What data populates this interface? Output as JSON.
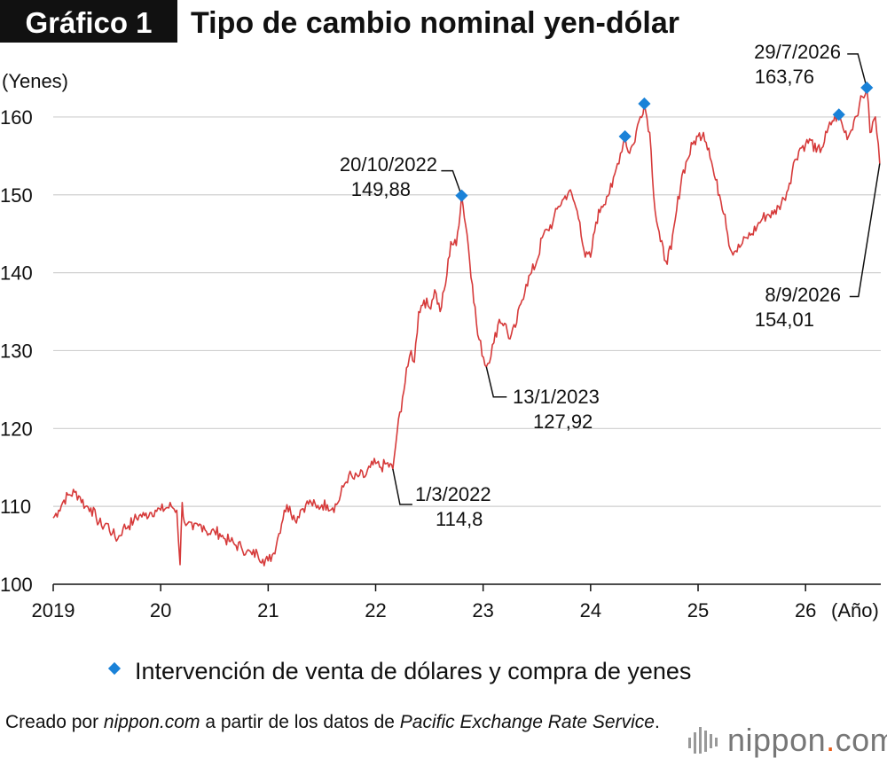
{
  "badge": "Gráfico 1",
  "title": "Tipo de cambio nominal yen-dólar",
  "chart_data": {
    "type": "line",
    "title": "Tipo de cambio nominal yen-dólar",
    "ylabel": "(Yenes)",
    "xlabel": "(Año)",
    "ylim": [
      100,
      165
    ],
    "yticks": [
      100,
      110,
      120,
      130,
      140,
      150,
      160
    ],
    "xlim": [
      2019.0,
      2026.7
    ],
    "xticks": [
      {
        "value": 2019,
        "label": "2019"
      },
      {
        "value": 2020,
        "label": "20"
      },
      {
        "value": 2021,
        "label": "21"
      },
      {
        "value": 2022,
        "label": "22"
      },
      {
        "value": 2023,
        "label": "23"
      },
      {
        "value": 2024,
        "label": "24"
      },
      {
        "value": 2025,
        "label": "25"
      },
      {
        "value": 2026,
        "label": "26"
      }
    ],
    "grid": "horizontal",
    "line_color": "#d63a3a",
    "marker_color": "#1a82d8",
    "series": [
      {
        "name": "",
        "x": [
          2019.0,
          2019.05,
          2019.1,
          2019.15,
          2019.2,
          2019.25,
          2019.3,
          2019.35,
          2019.4,
          2019.45,
          2019.5,
          2019.55,
          2019.6,
          2019.65,
          2019.7,
          2019.75,
          2019.8,
          2019.85,
          2019.9,
          2019.95,
          2020.0,
          2020.05,
          2020.1,
          2020.15,
          2020.18,
          2020.2,
          2020.22,
          2020.25,
          2020.3,
          2020.35,
          2020.4,
          2020.45,
          2020.5,
          2020.55,
          2020.6,
          2020.65,
          2020.7,
          2020.75,
          2020.8,
          2020.85,
          2020.9,
          2020.95,
          2021.0,
          2021.05,
          2021.1,
          2021.15,
          2021.2,
          2021.25,
          2021.3,
          2021.35,
          2021.4,
          2021.45,
          2021.5,
          2021.55,
          2021.6,
          2021.65,
          2021.7,
          2021.75,
          2021.8,
          2021.85,
          2021.9,
          2021.95,
          2022.0,
          2022.05,
          2022.1,
          2022.16,
          2022.2,
          2022.25,
          2022.3,
          2022.33,
          2022.36,
          2022.4,
          2022.45,
          2022.5,
          2022.55,
          2022.6,
          2022.65,
          2022.7,
          2022.75,
          2022.8,
          2022.85,
          2022.9,
          2022.95,
          2023.03,
          2023.1,
          2023.15,
          2023.2,
          2023.25,
          2023.3,
          2023.35,
          2023.4,
          2023.45,
          2023.5,
          2023.55,
          2023.6,
          2023.65,
          2023.7,
          2023.75,
          2023.8,
          2023.85,
          2023.9,
          2023.95,
          2024.0,
          2024.05,
          2024.1,
          2024.15,
          2024.2,
          2024.25,
          2024.32,
          2024.35,
          2024.4,
          2024.45,
          2024.5,
          2024.55,
          2024.6,
          2024.65,
          2024.7,
          2024.75,
          2024.8,
          2024.85,
          2024.9,
          2024.95,
          2025.0,
          2025.05,
          2025.1,
          2025.15,
          2025.2,
          2025.25,
          2025.3,
          2025.35,
          2025.4,
          2025.45,
          2025.5,
          2025.55,
          2025.6,
          2025.65,
          2025.7,
          2025.75,
          2025.8,
          2025.85,
          2025.9,
          2025.95,
          2026.0,
          2026.05,
          2026.1,
          2026.15,
          2026.2,
          2026.25,
          2026.31,
          2026.35,
          2026.4,
          2026.45,
          2026.5,
          2026.57,
          2026.6,
          2026.65,
          2026.69
        ],
        "values": [
          108.5,
          109.5,
          110.8,
          111.5,
          111.8,
          111.2,
          110.0,
          109.8,
          108.5,
          107.5,
          107.8,
          106.5,
          105.8,
          107.2,
          107.5,
          108.2,
          108.8,
          108.8,
          109.2,
          109.5,
          109.5,
          109.8,
          110.0,
          109.5,
          102.5,
          110.5,
          108.0,
          107.8,
          107.0,
          107.5,
          107.5,
          106.5,
          106.8,
          106.5,
          105.8,
          105.5,
          105.0,
          104.8,
          104.2,
          103.8,
          104.0,
          103.2,
          103.0,
          104.0,
          106.5,
          109.5,
          110.0,
          108.2,
          109.5,
          110.2,
          110.5,
          109.8,
          110.2,
          110.2,
          109.8,
          110.5,
          112.5,
          114.0,
          113.5,
          114.0,
          113.8,
          115.0,
          115.5,
          115.0,
          115.5,
          114.8,
          119.5,
          124.0,
          128.0,
          130.0,
          128.5,
          135.0,
          136.5,
          135.5,
          137.8,
          135.0,
          138.5,
          144.0,
          143.5,
          149.9,
          145.0,
          138.5,
          132.0,
          127.92,
          131.0,
          134.0,
          133.5,
          131.5,
          133.0,
          136.0,
          138.5,
          140.0,
          141.5,
          144.5,
          145.5,
          146.5,
          148.5,
          149.5,
          150.5,
          149.0,
          146.5,
          142.0,
          142.0,
          146.5,
          148.5,
          149.8,
          151.0,
          154.0,
          157.5,
          155.5,
          156.5,
          159.5,
          161.7,
          158.0,
          148.0,
          144.0,
          141.5,
          143.0,
          148.0,
          152.5,
          154.5,
          156.5,
          157.5,
          158.0,
          156.0,
          152.5,
          150.0,
          147.5,
          143.0,
          142.8,
          143.5,
          144.5,
          145.0,
          146.0,
          147.0,
          147.5,
          147.5,
          148.5,
          149.5,
          151.5,
          154.5,
          156.0,
          156.5,
          157.0,
          155.5,
          156.0,
          158.0,
          159.5,
          160.3,
          158.5,
          157.5,
          159.5,
          161.5,
          163.76,
          158.0,
          160.0,
          154.01
        ]
      }
    ],
    "markers": [
      {
        "x": 2022.8,
        "y": 149.9
      },
      {
        "x": 2024.32,
        "y": 157.5
      },
      {
        "x": 2024.5,
        "y": 161.7
      },
      {
        "x": 2026.31,
        "y": 160.3
      },
      {
        "x": 2026.57,
        "y": 163.76
      }
    ],
    "annotations": [
      {
        "date": "1/3/2022",
        "value": "114,8",
        "x": 2022.16,
        "y": 114.8
      },
      {
        "date": "20/10/2022",
        "value": "149,88",
        "x": 2022.8,
        "y": 149.9
      },
      {
        "date": "13/1/2023",
        "value": "127,92",
        "x": 2023.03,
        "y": 127.92
      },
      {
        "date": "29/7/2026",
        "value": "163,76",
        "x": 2026.57,
        "y": 163.76
      },
      {
        "date": "8/9/2026",
        "value": "154,01",
        "x": 2026.69,
        "y": 154.01
      }
    ],
    "legend": {
      "label": "Intervención de venta de dólares y compra de yenes",
      "position": "bottom-center"
    }
  },
  "footer": {
    "prefix": "Creado por ",
    "site": "nippon.com",
    "middle": " a partir de los datos de ",
    "source": "Pacific Exchange Rate Service",
    "suffix": "."
  },
  "brand": {
    "name": "nippon",
    "dot": ".",
    "tld": "com"
  }
}
